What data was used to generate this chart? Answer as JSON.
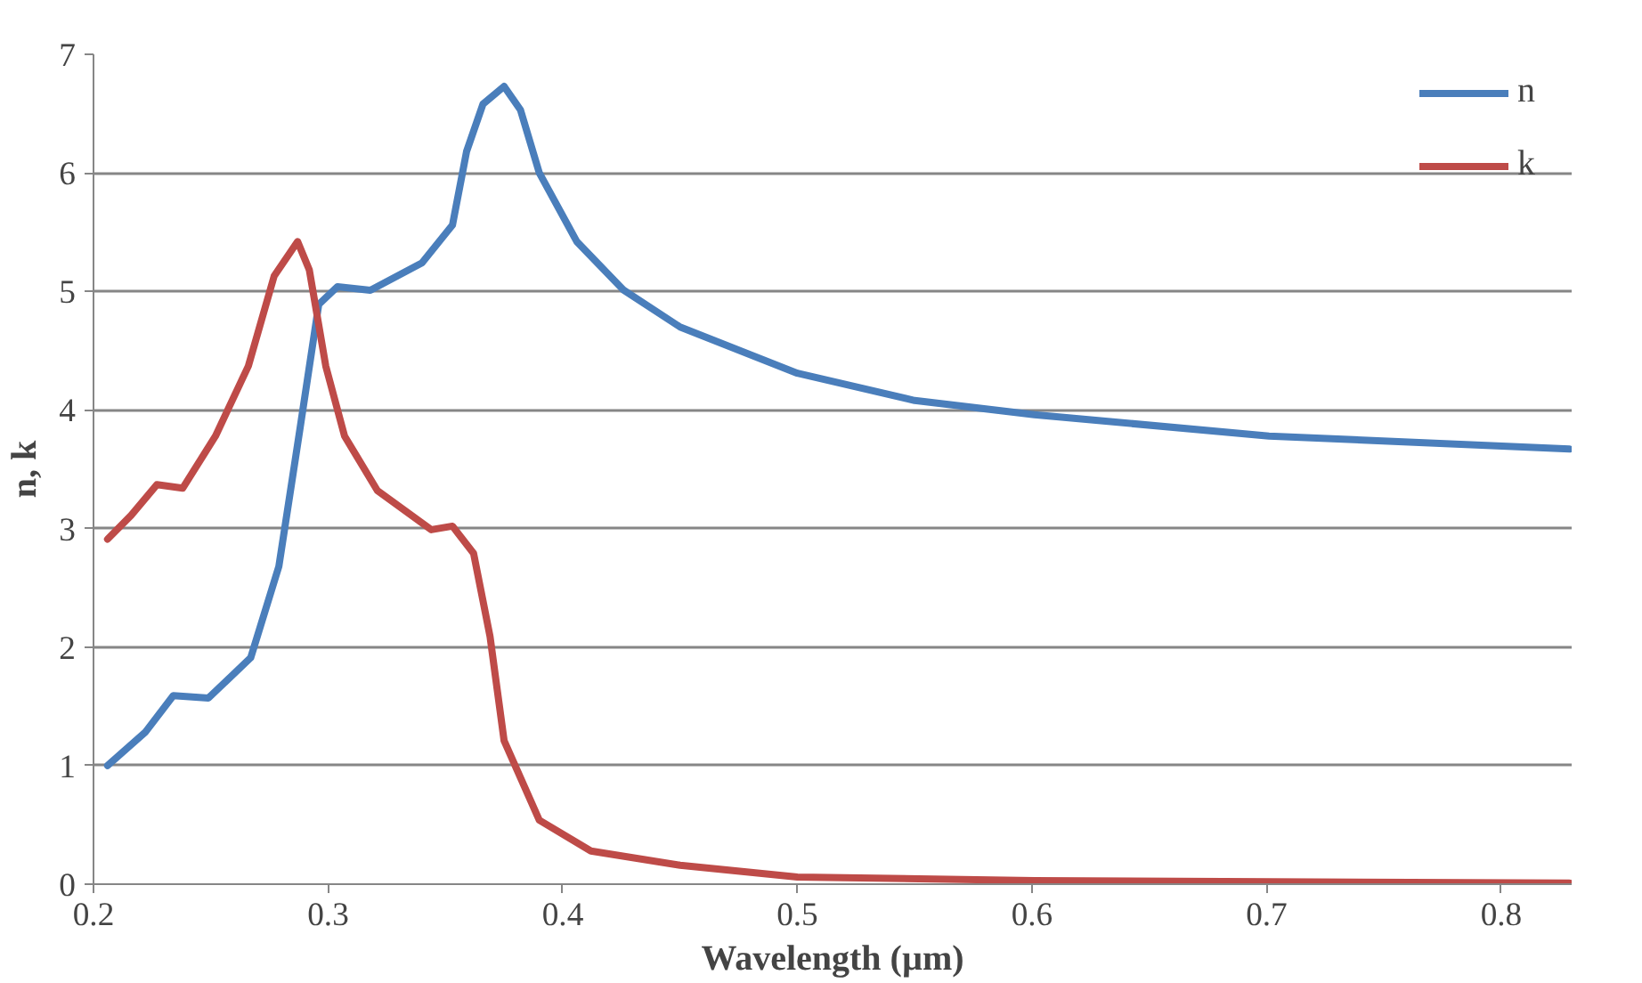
{
  "chart_data": {
    "type": "line",
    "xlabel": "Wavelength (µm)",
    "ylabel": "n, k",
    "xlim": [
      0.2,
      0.83
    ],
    "xticks": [
      {
        "value": 0.2,
        "label": "0.2"
      },
      {
        "value": 0.3,
        "label": "0.3"
      },
      {
        "value": 0.4,
        "label": "0.4"
      },
      {
        "value": 0.5,
        "label": "0.5"
      },
      {
        "value": 0.6,
        "label": "0.6"
      },
      {
        "value": 0.7,
        "label": "0.7"
      },
      {
        "value": 0.8,
        "label": "0.8"
      }
    ],
    "ylim": [
      0,
      7
    ],
    "yticks": [
      0,
      1,
      2,
      3,
      4,
      5,
      6,
      7
    ],
    "grid": "y",
    "legend": "top right",
    "marker": "none",
    "line_style": "solid",
    "series": [
      {
        "name": "n",
        "color": "#4a7ebb",
        "x": [
          0.206,
          0.222,
          0.234,
          0.249,
          0.267,
          0.279,
          0.288,
          0.296,
          0.304,
          0.318,
          0.34,
          0.353,
          0.359,
          0.366,
          0.375,
          0.382,
          0.39,
          0.406,
          0.426,
          0.45,
          0.5,
          0.55,
          0.601,
          0.701,
          0.829
        ],
        "values": [
          1.0,
          1.28,
          1.59,
          1.57,
          1.91,
          2.68,
          3.84,
          4.89,
          5.04,
          5.01,
          5.24,
          5.56,
          6.18,
          6.58,
          6.73,
          6.53,
          6.0,
          5.42,
          5.01,
          4.7,
          4.31,
          4.08,
          3.96,
          3.78,
          3.67
        ]
      },
      {
        "name": "k",
        "color": "#be4b48",
        "x": [
          0.206,
          0.216,
          0.227,
          0.238,
          0.252,
          0.266,
          0.277,
          0.287,
          0.292,
          0.299,
          0.307,
          0.321,
          0.344,
          0.353,
          0.362,
          0.369,
          0.375,
          0.39,
          0.412,
          0.45,
          0.5,
          0.601,
          0.701,
          0.829
        ],
        "values": [
          2.91,
          3.11,
          3.37,
          3.34,
          3.78,
          4.37,
          5.13,
          5.42,
          5.18,
          4.37,
          3.78,
          3.32,
          2.99,
          3.02,
          2.79,
          2.09,
          1.21,
          0.54,
          0.28,
          0.16,
          0.06,
          0.03,
          0.02,
          0.01
        ]
      }
    ]
  }
}
